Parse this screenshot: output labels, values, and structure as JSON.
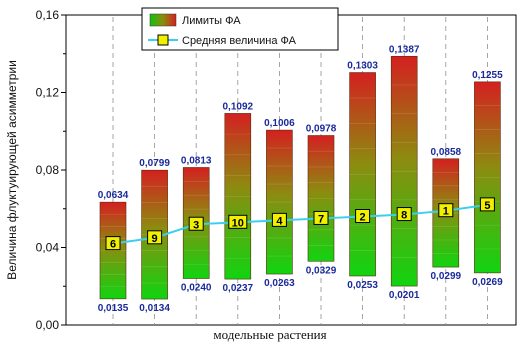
{
  "chart_data": {
    "type": "bar",
    "subtype": "floating-range-with-line",
    "ylabel": "Величина флуктуирующей асимметрии",
    "xlabel": "модельные растения",
    "ylim": [
      0,
      0.16
    ],
    "yticks": [
      "0,00",
      "0,04",
      "0,08",
      "0,12",
      "0,16"
    ],
    "ytick_values": [
      0,
      0.04,
      0.08,
      0.12,
      0.16
    ],
    "grid": "vertical dashed",
    "legend_position": "top-center",
    "series": [
      {
        "name": "Лимиты ФА",
        "kind": "range-bar",
        "low": [
          0.0135,
          0.0134,
          0.024,
          0.0237,
          0.0263,
          0.0329,
          0.0253,
          0.0201,
          0.0299,
          0.0269
        ],
        "high": [
          0.0634,
          0.0799,
          0.0813,
          0.1092,
          0.1006,
          0.0978,
          0.1303,
          0.1387,
          0.0858,
          0.1255
        ],
        "low_labels": [
          "0,0135",
          "0,0134",
          "0,0240",
          "0,0237",
          "0,0263",
          "0,0329",
          "0,0253",
          "0,0201",
          "0,0299",
          "0,0269"
        ],
        "high_labels": [
          "0,0634",
          "0,0799",
          "0,0813",
          "0,1092",
          "0,1006",
          "0,0978",
          "0,1303",
          "0,1387",
          "0,0858",
          "0,1255"
        ]
      },
      {
        "name": "Средняя величина ФА",
        "kind": "line",
        "values": [
          0.042,
          0.045,
          0.052,
          0.053,
          0.054,
          0.055,
          0.056,
          0.057,
          0.059,
          0.062
        ],
        "marker_labels": [
          "6",
          "9",
          "3",
          "10",
          "4",
          "7",
          "2",
          "8",
          "1",
          "5"
        ]
      }
    ],
    "colors": {
      "bar_top": "#d42020",
      "bar_mid": "#8c8c10",
      "bar_bottom": "#10d410",
      "line": "#39d0f0",
      "marker_fill": "#f0f000",
      "data_label": "#1a2a9a"
    }
  }
}
